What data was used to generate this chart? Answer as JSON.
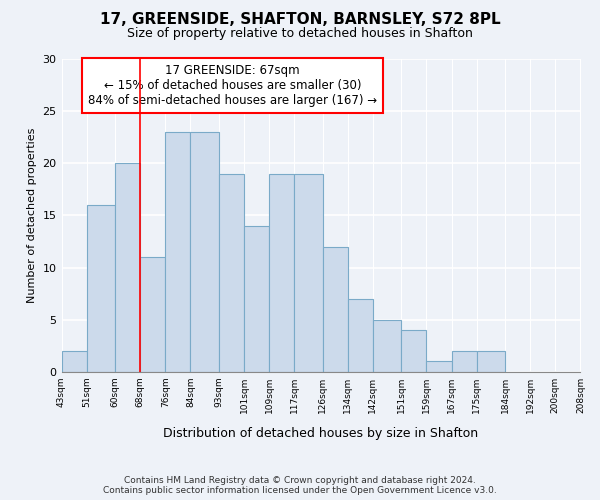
{
  "title1": "17, GREENSIDE, SHAFTON, BARNSLEY, S72 8PL",
  "title2": "Size of property relative to detached houses in Shafton",
  "xlabel": "Distribution of detached houses by size in Shafton",
  "ylabel": "Number of detached properties",
  "footer1": "Contains HM Land Registry data © Crown copyright and database right 2024.",
  "footer2": "Contains public sector information licensed under the Open Government Licence v3.0.",
  "bin_edges": [
    43,
    51,
    60,
    68,
    76,
    84,
    93,
    101,
    109,
    117,
    126,
    134,
    142,
    151,
    159,
    167,
    175,
    184,
    192,
    200,
    208
  ],
  "bin_labels": [
    "43sqm",
    "51sqm",
    "60sqm",
    "68sqm",
    "76sqm",
    "84sqm",
    "93sqm",
    "101sqm",
    "109sqm",
    "117sqm",
    "126sqm",
    "134sqm",
    "142sqm",
    "151sqm",
    "159sqm",
    "167sqm",
    "175sqm",
    "184sqm",
    "192sqm",
    "200sqm",
    "208sqm"
  ],
  "values": [
    2,
    16,
    20,
    11,
    23,
    23,
    19,
    14,
    19,
    19,
    12,
    7,
    5,
    4,
    1,
    2,
    2,
    0,
    0,
    0
  ],
  "bar_color": "#ccdaeb",
  "bar_edge_color": "#7aaac8",
  "red_line_x": 68,
  "annotation_text": "17 GREENSIDE: 67sqm\n← 15% of detached houses are smaller (30)\n84% of semi-detached houses are larger (167) →",
  "annotation_box_color": "white",
  "annotation_box_edge": "red",
  "ylim": [
    0,
    30
  ],
  "yticks": [
    0,
    5,
    10,
    15,
    20,
    25,
    30
  ],
  "xlim": [
    43,
    208
  ],
  "background_color": "#eef2f8",
  "grid_color": "white",
  "title_fontsize": 11,
  "subtitle_fontsize": 9
}
